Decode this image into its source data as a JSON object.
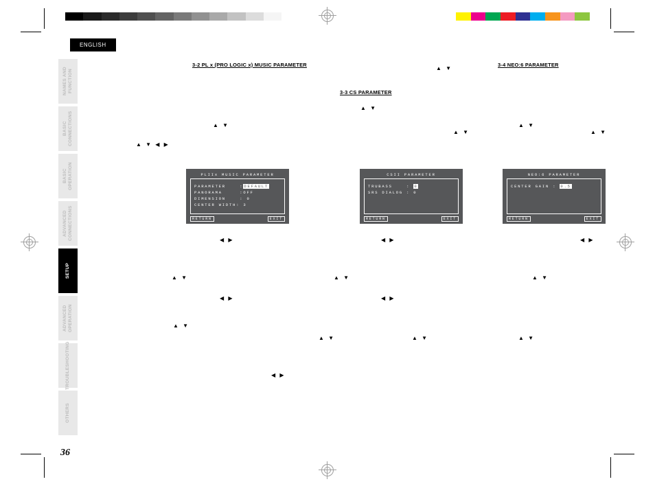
{
  "page_number": "36",
  "language_tab": "ENGLISH",
  "side_tabs": [
    {
      "label": "NAMES AND FUNCTION",
      "style": "light"
    },
    {
      "label": "BASIC CONNECTIONS",
      "style": "light"
    },
    {
      "label": "BASIC OPERATION",
      "style": "light"
    },
    {
      "label": "ADVANCED CONNECTIONS",
      "style": "light"
    },
    {
      "label": "SETUP",
      "style": "dark"
    },
    {
      "label": "ADVANCED OPERATION",
      "style": "light"
    },
    {
      "label": "TROUBLESHOOTING",
      "style": "light"
    },
    {
      "label": "OTHERS",
      "style": "light"
    }
  ],
  "headings": {
    "h32": "3-2  PL   x (PRO LOGIC   x) MUSIC PARAMETER",
    "h33": "3-3  CS   PARAMETER",
    "h34": "3-4  NEO:6 PARAMETER"
  },
  "osd1": {
    "title": "PLIIx MUSIC PARAMETER",
    "rows": [
      "PARAMETER    :",
      "",
      "PANORAMA     :OFF",
      "DIMENSION    : 0",
      "CENTER WIDTH: 3"
    ],
    "highlight_row": 0,
    "highlight_text": "DEFAULT",
    "footer_left": "RETURN",
    "footer_right": "EXIT"
  },
  "osd2": {
    "title": "CSII PARAMETER",
    "rows": [
      "TRUBASS    : ",
      "SRS DIALOG : 0"
    ],
    "highlight_row": 0,
    "highlight_text": "0",
    "footer_left": "RETURN",
    "footer_right": "EXIT"
  },
  "osd3": {
    "title": "NEO:6 PARAMETER",
    "rows": [
      "CENTER GAIN : "
    ],
    "highlight_row": 0,
    "highlight_text": "0.5",
    "footer_left": "RETURN",
    "footer_right": "EXIT"
  },
  "gray_steps": [
    "#000000",
    "#1a1a1a",
    "#2b2b2b",
    "#3d3d3d",
    "#505050",
    "#646464",
    "#7a7a7a",
    "#919191",
    "#a9a9a9",
    "#c2c2c2",
    "#dcdcdc",
    "#f5f5f5"
  ],
  "color_steps": [
    "#fff200",
    "#ec008c",
    "#00a651",
    "#ed1c24",
    "#2e3192",
    "#00aeef",
    "#f7941d",
    "#f49ac1",
    "#8dc63f"
  ],
  "arrows": {
    "up": "▲",
    "down": "▼",
    "left": "◀",
    "right": "▶"
  }
}
